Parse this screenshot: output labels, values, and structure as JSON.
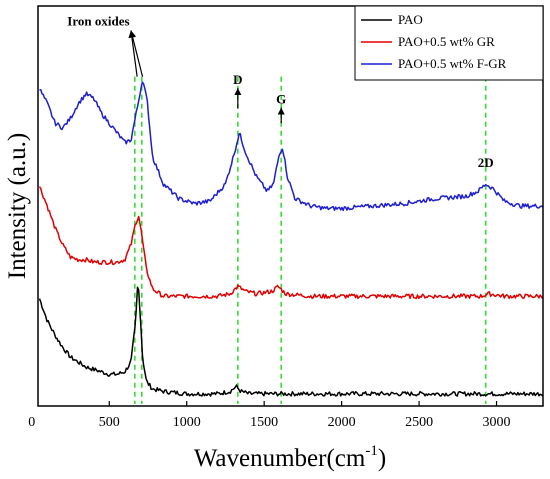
{
  "chart_data": {
    "type": "line",
    "xlabel": "Wavenumber(cm",
    "xlabel_sup": "-1",
    "xlabel_close": ")",
    "ylabel": "Intensity (a.u.)",
    "xlim": [
      40,
      3300
    ],
    "x_ticks": [
      500,
      1000,
      1500,
      2000,
      2500,
      3000
    ],
    "x_tick_labels": [
      "0",
      "500",
      "1000",
      "1500",
      "2000",
      "2500",
      "3000"
    ],
    "x_tick_zero_value": 0,
    "y_ticks_visible": false,
    "grid": false,
    "legend_position": "top-right",
    "series": [
      {
        "name": "PAO",
        "color": "#000000",
        "points": [
          [
            50,
            0.52
          ],
          [
            100,
            0.43
          ],
          [
            150,
            0.37
          ],
          [
            200,
            0.32
          ],
          [
            250,
            0.28
          ],
          [
            300,
            0.26
          ],
          [
            350,
            0.24
          ],
          [
            400,
            0.23
          ],
          [
            450,
            0.22
          ],
          [
            500,
            0.21
          ],
          [
            550,
            0.21
          ],
          [
            600,
            0.22
          ],
          [
            640,
            0.26
          ],
          [
            670,
            0.42
          ],
          [
            685,
            0.6
          ],
          [
            700,
            0.46
          ],
          [
            715,
            0.28
          ],
          [
            740,
            0.18
          ],
          [
            780,
            0.15
          ],
          [
            850,
            0.14
          ],
          [
            1000,
            0.13
          ],
          [
            1200,
            0.13
          ],
          [
            1280,
            0.14
          ],
          [
            1320,
            0.16
          ],
          [
            1350,
            0.14
          ],
          [
            1400,
            0.13
          ],
          [
            1600,
            0.13
          ],
          [
            2000,
            0.13
          ],
          [
            2500,
            0.13
          ],
          [
            2950,
            0.13
          ],
          [
            3300,
            0.13
          ]
        ]
      },
      {
        "name": "PAO+0.5 wt% GR",
        "color": "#e00000",
        "points": [
          [
            50,
            0.98
          ],
          [
            100,
            0.9
          ],
          [
            150,
            0.81
          ],
          [
            200,
            0.74
          ],
          [
            250,
            0.69
          ],
          [
            300,
            0.68
          ],
          [
            350,
            0.68
          ],
          [
            400,
            0.67
          ],
          [
            450,
            0.67
          ],
          [
            500,
            0.67
          ],
          [
            550,
            0.67
          ],
          [
            600,
            0.68
          ],
          [
            640,
            0.74
          ],
          [
            670,
            0.83
          ],
          [
            690,
            0.86
          ],
          [
            710,
            0.78
          ],
          [
            740,
            0.64
          ],
          [
            780,
            0.56
          ],
          [
            850,
            0.53
          ],
          [
            1000,
            0.53
          ],
          [
            1200,
            0.53
          ],
          [
            1280,
            0.54
          ],
          [
            1330,
            0.57
          ],
          [
            1380,
            0.55
          ],
          [
            1450,
            0.54
          ],
          [
            1550,
            0.55
          ],
          [
            1590,
            0.57
          ],
          [
            1640,
            0.54
          ],
          [
            1800,
            0.53
          ],
          [
            2200,
            0.53
          ],
          [
            2600,
            0.53
          ],
          [
            2900,
            0.53
          ],
          [
            2950,
            0.54
          ],
          [
            3050,
            0.53
          ],
          [
            3300,
            0.53
          ]
        ]
      },
      {
        "name": "PAO+0.5 wt% F-GR",
        "color": "#1e1ed0",
        "points": [
          [
            50,
            1.38
          ],
          [
            100,
            1.32
          ],
          [
            150,
            1.24
          ],
          [
            200,
            1.22
          ],
          [
            250,
            1.26
          ],
          [
            300,
            1.32
          ],
          [
            350,
            1.36
          ],
          [
            400,
            1.34
          ],
          [
            450,
            1.28
          ],
          [
            500,
            1.24
          ],
          [
            550,
            1.2
          ],
          [
            600,
            1.16
          ],
          [
            640,
            1.17
          ],
          [
            680,
            1.3
          ],
          [
            715,
            1.42
          ],
          [
            745,
            1.33
          ],
          [
            780,
            1.1
          ],
          [
            850,
            0.99
          ],
          [
            950,
            0.93
          ],
          [
            1050,
            0.91
          ],
          [
            1150,
            0.92
          ],
          [
            1250,
            0.99
          ],
          [
            1300,
            1.1
          ],
          [
            1340,
            1.2
          ],
          [
            1380,
            1.12
          ],
          [
            1450,
            1.02
          ],
          [
            1520,
            0.96
          ],
          [
            1560,
            0.99
          ],
          [
            1600,
            1.12
          ],
          [
            1620,
            1.14
          ],
          [
            1650,
            1.02
          ],
          [
            1700,
            0.93
          ],
          [
            1800,
            0.9
          ],
          [
            1900,
            0.89
          ],
          [
            2000,
            0.89
          ],
          [
            2200,
            0.9
          ],
          [
            2400,
            0.91
          ],
          [
            2600,
            0.93
          ],
          [
            2800,
            0.94
          ],
          [
            2880,
            0.96
          ],
          [
            2930,
            0.99
          ],
          [
            2980,
            0.97
          ],
          [
            3050,
            0.92
          ],
          [
            3150,
            0.9
          ],
          [
            3300,
            0.9
          ]
        ]
      }
    ],
    "reference_lines": [
      {
        "x": 665,
        "color": "#33dd33"
      },
      {
        "x": 710,
        "color": "#33dd33"
      },
      {
        "x": 1330,
        "color": "#33dd33"
      },
      {
        "x": 1610,
        "color": "#33dd33"
      },
      {
        "x": 2930,
        "color": "#33dd33"
      }
    ],
    "annotations": [
      {
        "label": "Iron oxides",
        "x": 430,
        "y": 1.64,
        "arrow_targets": [
          [
            680,
            1.43
          ],
          [
            715,
            1.43
          ]
        ]
      },
      {
        "label": "D",
        "x": 1330,
        "y": 1.4,
        "arrow_targets": [
          [
            1330,
            1.3
          ]
        ]
      },
      {
        "label": "G",
        "x": 1610,
        "y": 1.32,
        "arrow_targets": [
          [
            1610,
            1.24
          ]
        ]
      },
      {
        "label": "2D",
        "x": 2930,
        "y": 1.06,
        "arrow_targets": []
      }
    ],
    "ylim": [
      0.08,
      1.72
    ]
  }
}
